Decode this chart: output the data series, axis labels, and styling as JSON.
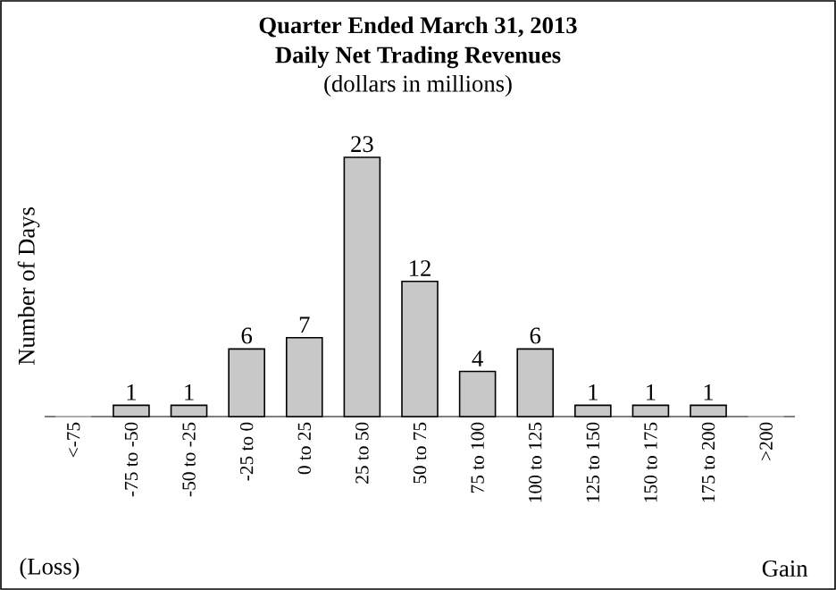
{
  "chart_data": {
    "type": "bar",
    "title": "Quarter Ended March 31, 2013",
    "subtitle": "Daily Net Trading Revenues",
    "annotations": [
      "(dollars in millions)",
      "(Loss)",
      "Gain"
    ],
    "ylabel": "Number of Days",
    "categories": [
      "<-75",
      "-75 to -50",
      "-50 to -25",
      "-25 to 0",
      "0 to 25",
      "25 to 50",
      "50 to 75",
      "75 to 100",
      "100 to 125",
      "125 to 150",
      "150 to 175",
      "175 to 200",
      ">200"
    ],
    "values": [
      0,
      1,
      1,
      6,
      7,
      23,
      12,
      4,
      6,
      1,
      1,
      1,
      0
    ],
    "value_labels": [
      null,
      "1",
      "1",
      "6",
      "7",
      "23",
      "12",
      "4",
      "6",
      "1",
      "1",
      "1",
      null
    ],
    "color": "#c8c8c8",
    "tick_labels": "x"
  }
}
